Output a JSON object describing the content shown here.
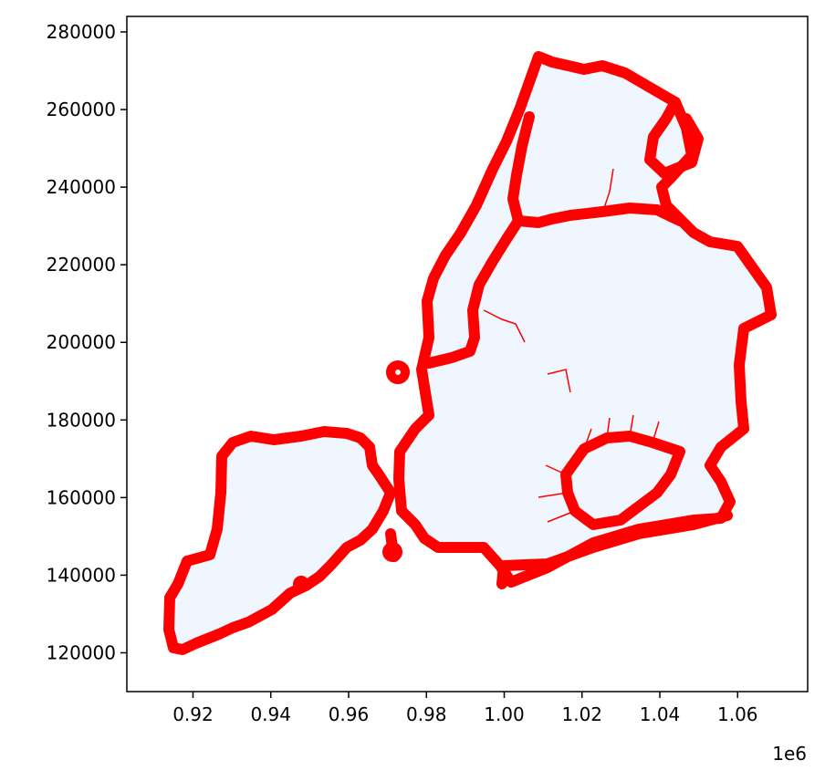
{
  "chart_data": {
    "type": "map",
    "xlim": [
      903000,
      1078000
    ],
    "ylim": [
      110000,
      284000
    ],
    "x_ticks": [
      0.92,
      0.94,
      0.96,
      0.98,
      1.0,
      1.02,
      1.04,
      1.06
    ],
    "x_tick_labels": [
      "0.92",
      "0.94",
      "0.96",
      "0.98",
      "1.00",
      "1.02",
      "1.04",
      "1.06"
    ],
    "x_offset_label": "1e6",
    "y_ticks": [
      120000,
      140000,
      160000,
      180000,
      200000,
      220000,
      240000,
      260000,
      280000
    ],
    "y_tick_labels": [
      "120000",
      "140000",
      "160000",
      "180000",
      "200000",
      "220000",
      "240000",
      "260000",
      "280000"
    ],
    "colors": {
      "fill": "#eff6fd",
      "boundary": "#ff0000",
      "axes": "#000000"
    }
  }
}
